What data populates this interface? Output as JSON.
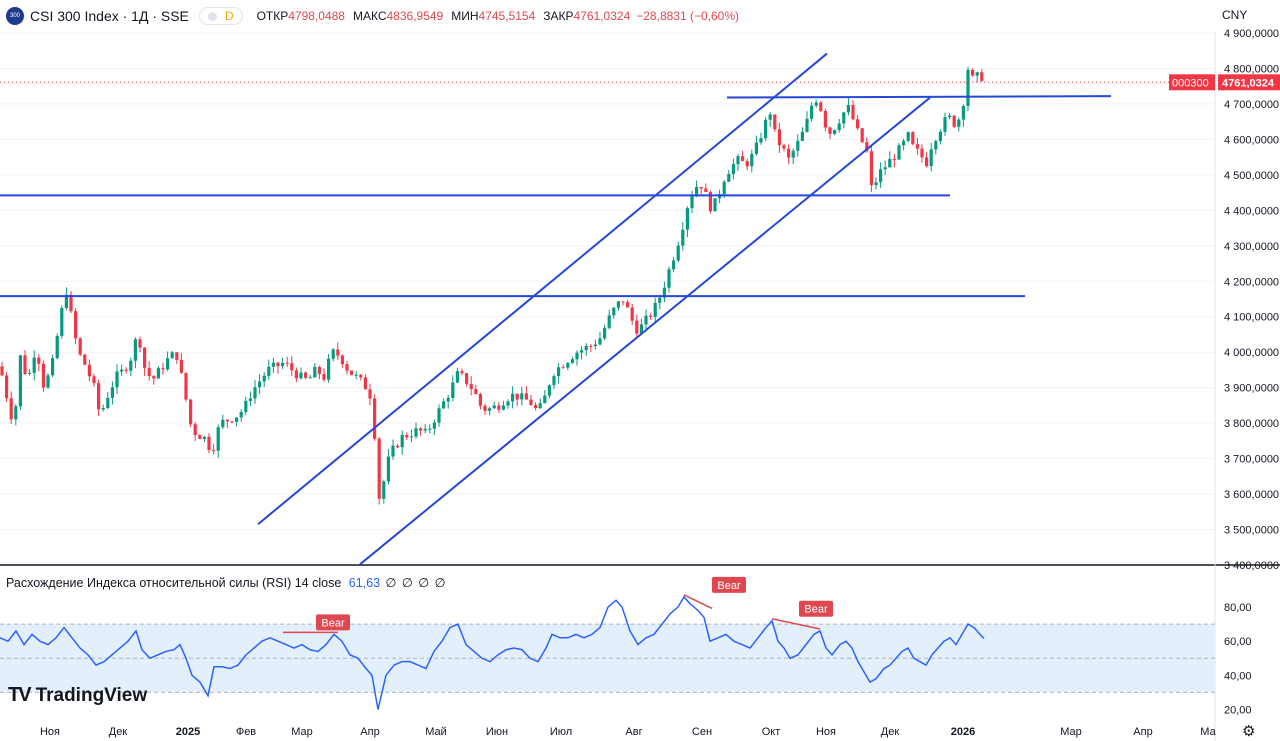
{
  "header": {
    "symbol_title": "CSI 300 Index · 1Д · SSE",
    "logo_text": "300",
    "pill_label": "D",
    "ohlc": [
      {
        "label": "ОТКР",
        "value": "4798,0488"
      },
      {
        "label": "МАКС",
        "value": "4836,9549"
      },
      {
        "label": "МИН",
        "value": "4745,5154"
      },
      {
        "label": "ЗАКР",
        "value": "4761,0324"
      }
    ],
    "change": "−28,8831 (−0,60%)"
  },
  "currency": "CNY",
  "rsi_legend": {
    "title": "Расхождение Индекса относительной силы (RSI) 14 close",
    "value": "61,63",
    "extras": [
      "∅",
      "∅",
      "∅",
      "∅"
    ]
  },
  "branding": "TradingView",
  "colors": {
    "up": "#089981",
    "down": "#f23645",
    "trendline": "#2447d9",
    "rsi_line": "#2962ff",
    "rsi_band": "#e3effb",
    "bear_label": "#e0484f"
  },
  "chart_data": {
    "type": "candlestick",
    "title": "CSI 300 Index · 1Д · SSE",
    "x_ticks": [
      "Ноя",
      "Дек",
      "2025",
      "Фев",
      "Мар",
      "Апр",
      "Май",
      "Июн",
      "Июл",
      "Авг",
      "Сен",
      "Окт",
      "Ноя",
      "Дек",
      "2026",
      "Мар",
      "Апр",
      "Ма"
    ],
    "y_ticks": [
      "4 900,0000",
      "4 800,0000",
      "4 700,0000",
      "4 600,0000",
      "4 500,0000",
      "4 400,0000",
      "4 300,0000",
      "4 200,0000",
      "4 100,0000",
      "4 000,0000",
      "3 900,0000",
      "3 800,0000",
      "3 700,0000",
      "3 600,0000",
      "3 500,0000",
      "3 400,0000"
    ],
    "ylim": [
      3400,
      4900
    ],
    "last_price_label": "4761,0324",
    "symbol_tag": "000300",
    "approx_close_path": [
      [
        0,
        3960
      ],
      [
        8,
        3860
      ],
      [
        14,
        3790
      ],
      [
        20,
        3990
      ],
      [
        28,
        3920
      ],
      [
        36,
        4020
      ],
      [
        44,
        3900
      ],
      [
        52,
        3960
      ],
      [
        60,
        4090
      ],
      [
        66,
        4180
      ],
      [
        70,
        4120
      ],
      [
        78,
        4000
      ],
      [
        86,
        3960
      ],
      [
        94,
        3900
      ],
      [
        100,
        3820
      ],
      [
        108,
        3880
      ],
      [
        116,
        3930
      ],
      [
        124,
        3950
      ],
      [
        132,
        3990
      ],
      [
        138,
        4060
      ],
      [
        144,
        3960
      ],
      [
        152,
        3920
      ],
      [
        160,
        3950
      ],
      [
        168,
        3980
      ],
      [
        176,
        4000
      ],
      [
        184,
        3900
      ],
      [
        190,
        3800
      ],
      [
        196,
        3770
      ],
      [
        204,
        3760
      ],
      [
        212,
        3720
      ],
      [
        220,
        3800
      ],
      [
        228,
        3810
      ],
      [
        236,
        3820
      ],
      [
        244,
        3840
      ],
      [
        252,
        3890
      ],
      [
        260,
        3920
      ],
      [
        268,
        3950
      ],
      [
        276,
        3960
      ],
      [
        284,
        3970
      ],
      [
        292,
        3950
      ],
      [
        300,
        3930
      ],
      [
        308,
        3920
      ],
      [
        316,
        3950
      ],
      [
        324,
        3930
      ],
      [
        332,
        4000
      ],
      [
        340,
        3990
      ],
      [
        348,
        3950
      ],
      [
        356,
        3930
      ],
      [
        364,
        3910
      ],
      [
        372,
        3870
      ],
      [
        380,
        3560
      ],
      [
        386,
        3680
      ],
      [
        394,
        3730
      ],
      [
        402,
        3760
      ],
      [
        410,
        3770
      ],
      [
        418,
        3780
      ],
      [
        426,
        3770
      ],
      [
        434,
        3810
      ],
      [
        442,
        3850
      ],
      [
        450,
        3890
      ],
      [
        458,
        3940
      ],
      [
        466,
        3920
      ],
      [
        474,
        3890
      ],
      [
        482,
        3840
      ],
      [
        490,
        3840
      ],
      [
        498,
        3850
      ],
      [
        506,
        3870
      ],
      [
        514,
        3880
      ],
      [
        522,
        3870
      ],
      [
        530,
        3860
      ],
      [
        538,
        3830
      ],
      [
        546,
        3880
      ],
      [
        552,
        3940
      ],
      [
        560,
        3960
      ],
      [
        568,
        3980
      ],
      [
        576,
        4000
      ],
      [
        584,
        4010
      ],
      [
        592,
        4020
      ],
      [
        600,
        4040
      ],
      [
        608,
        4090
      ],
      [
        616,
        4130
      ],
      [
        624,
        4150
      ],
      [
        630,
        4100
      ],
      [
        638,
        4060
      ],
      [
        646,
        4090
      ],
      [
        654,
        4120
      ],
      [
        662,
        4170
      ],
      [
        670,
        4240
      ],
      [
        676,
        4290
      ],
      [
        682,
        4350
      ],
      [
        688,
        4420
      ],
      [
        694,
        4460
      ],
      [
        700,
        4480
      ],
      [
        706,
        4440
      ],
      [
        712,
        4400
      ],
      [
        718,
        4440
      ],
      [
        724,
        4490
      ],
      [
        730,
        4520
      ],
      [
        738,
        4540
      ],
      [
        746,
        4530
      ],
      [
        754,
        4560
      ],
      [
        762,
        4620
      ],
      [
        770,
        4680
      ],
      [
        776,
        4600
      ],
      [
        782,
        4580
      ],
      [
        788,
        4540
      ],
      [
        794,
        4570
      ],
      [
        800,
        4600
      ],
      [
        806,
        4640
      ],
      [
        812,
        4700
      ],
      [
        818,
        4720
      ],
      [
        824,
        4650
      ],
      [
        830,
        4620
      ],
      [
        836,
        4640
      ],
      [
        842,
        4670
      ],
      [
        848,
        4690
      ],
      [
        854,
        4650
      ],
      [
        860,
        4600
      ],
      [
        866,
        4580
      ],
      [
        872,
        4450
      ],
      [
        878,
        4500
      ],
      [
        884,
        4520
      ],
      [
        890,
        4540
      ],
      [
        896,
        4560
      ],
      [
        902,
        4580
      ],
      [
        908,
        4610
      ],
      [
        914,
        4570
      ],
      [
        920,
        4560
      ],
      [
        926,
        4530
      ],
      [
        932,
        4590
      ],
      [
        938,
        4620
      ],
      [
        944,
        4650
      ],
      [
        950,
        4660
      ],
      [
        956,
        4640
      ],
      [
        962,
        4680
      ],
      [
        968,
        4800
      ],
      [
        974,
        4760
      ],
      [
        980,
        4790
      ],
      [
        984,
        4761
      ]
    ],
    "rsi": {
      "length": 14,
      "source": "close",
      "value": 61.63,
      "y_ticks": [
        "80,00",
        "60,00",
        "40,00",
        "20,00"
      ],
      "band": [
        30,
        70
      ],
      "ylim": [
        15,
        90
      ],
      "bear_labels": [
        "Bear",
        "Bear",
        "Bear"
      ],
      "approx_path": [
        [
          0,
          62
        ],
        [
          8,
          60
        ],
        [
          16,
          66
        ],
        [
          24,
          58
        ],
        [
          32,
          64
        ],
        [
          40,
          60
        ],
        [
          48,
          58
        ],
        [
          56,
          62
        ],
        [
          64,
          68
        ],
        [
          72,
          62
        ],
        [
          80,
          56
        ],
        [
          88,
          52
        ],
        [
          96,
          46
        ],
        [
          104,
          48
        ],
        [
          112,
          52
        ],
        [
          120,
          56
        ],
        [
          128,
          60
        ],
        [
          136,
          66
        ],
        [
          142,
          55
        ],
        [
          150,
          50
        ],
        [
          158,
          52
        ],
        [
          166,
          54
        ],
        [
          174,
          55
        ],
        [
          180,
          58
        ],
        [
          186,
          50
        ],
        [
          192,
          40
        ],
        [
          200,
          36
        ],
        [
          208,
          28
        ],
        [
          214,
          45
        ],
        [
          222,
          45
        ],
        [
          230,
          44
        ],
        [
          238,
          46
        ],
        [
          246,
          52
        ],
        [
          254,
          56
        ],
        [
          262,
          60
        ],
        [
          270,
          62
        ],
        [
          278,
          60
        ],
        [
          286,
          58
        ],
        [
          294,
          56
        ],
        [
          302,
          58
        ],
        [
          310,
          55
        ],
        [
          318,
          54
        ],
        [
          326,
          58
        ],
        [
          334,
          64
        ],
        [
          342,
          60
        ],
        [
          350,
          52
        ],
        [
          358,
          50
        ],
        [
          366,
          44
        ],
        [
          372,
          40
        ],
        [
          378,
          20
        ],
        [
          386,
          40
        ],
        [
          394,
          46
        ],
        [
          402,
          48
        ],
        [
          410,
          48
        ],
        [
          418,
          46
        ],
        [
          426,
          44
        ],
        [
          434,
          54
        ],
        [
          442,
          60
        ],
        [
          450,
          68
        ],
        [
          458,
          70
        ],
        [
          466,
          58
        ],
        [
          474,
          54
        ],
        [
          482,
          50
        ],
        [
          490,
          48
        ],
        [
          498,
          52
        ],
        [
          506,
          55
        ],
        [
          514,
          56
        ],
        [
          522,
          55
        ],
        [
          530,
          50
        ],
        [
          538,
          48
        ],
        [
          546,
          56
        ],
        [
          552,
          64
        ],
        [
          560,
          62
        ],
        [
          568,
          62
        ],
        [
          576,
          64
        ],
        [
          584,
          62
        ],
        [
          592,
          64
        ],
        [
          600,
          68
        ],
        [
          608,
          80
        ],
        [
          616,
          84
        ],
        [
          622,
          80
        ],
        [
          630,
          66
        ],
        [
          638,
          58
        ],
        [
          646,
          62
        ],
        [
          654,
          64
        ],
        [
          662,
          70
        ],
        [
          670,
          76
        ],
        [
          678,
          80
        ],
        [
          684,
          86
        ],
        [
          690,
          82
        ],
        [
          698,
          78
        ],
        [
          704,
          74
        ],
        [
          710,
          60
        ],
        [
          718,
          62
        ],
        [
          726,
          64
        ],
        [
          734,
          60
        ],
        [
          742,
          58
        ],
        [
          750,
          56
        ],
        [
          758,
          62
        ],
        [
          766,
          68
        ],
        [
          772,
          72
        ],
        [
          778,
          60
        ],
        [
          784,
          56
        ],
        [
          790,
          50
        ],
        [
          798,
          52
        ],
        [
          806,
          58
        ],
        [
          814,
          64
        ],
        [
          820,
          66
        ],
        [
          826,
          56
        ],
        [
          832,
          52
        ],
        [
          840,
          58
        ],
        [
          846,
          60
        ],
        [
          852,
          56
        ],
        [
          858,
          48
        ],
        [
          864,
          42
        ],
        [
          870,
          36
        ],
        [
          876,
          38
        ],
        [
          884,
          44
        ],
        [
          890,
          46
        ],
        [
          896,
          50
        ],
        [
          902,
          54
        ],
        [
          908,
          56
        ],
        [
          914,
          50
        ],
        [
          920,
          48
        ],
        [
          926,
          46
        ],
        [
          932,
          52
        ],
        [
          938,
          56
        ],
        [
          944,
          60
        ],
        [
          950,
          62
        ],
        [
          956,
          58
        ],
        [
          962,
          64
        ],
        [
          968,
          70
        ],
        [
          974,
          68
        ],
        [
          980,
          64
        ],
        [
          984,
          61.63
        ]
      ]
    },
    "trendlines": [
      {
        "from": [
          0,
          4442
        ],
        "to": [
          950,
          4442
        ]
      },
      {
        "from": [
          0,
          4158
        ],
        "to": [
          1025,
          4158
        ]
      },
      {
        "from": [
          727,
          4718
        ],
        "to": [
          1111,
          4722
        ]
      },
      {
        "from": [
          258,
          3515
        ],
        "to": [
          827,
          4842
        ]
      },
      {
        "from": [
          360,
          3402
        ],
        "to": [
          930,
          4718
        ]
      }
    ]
  }
}
